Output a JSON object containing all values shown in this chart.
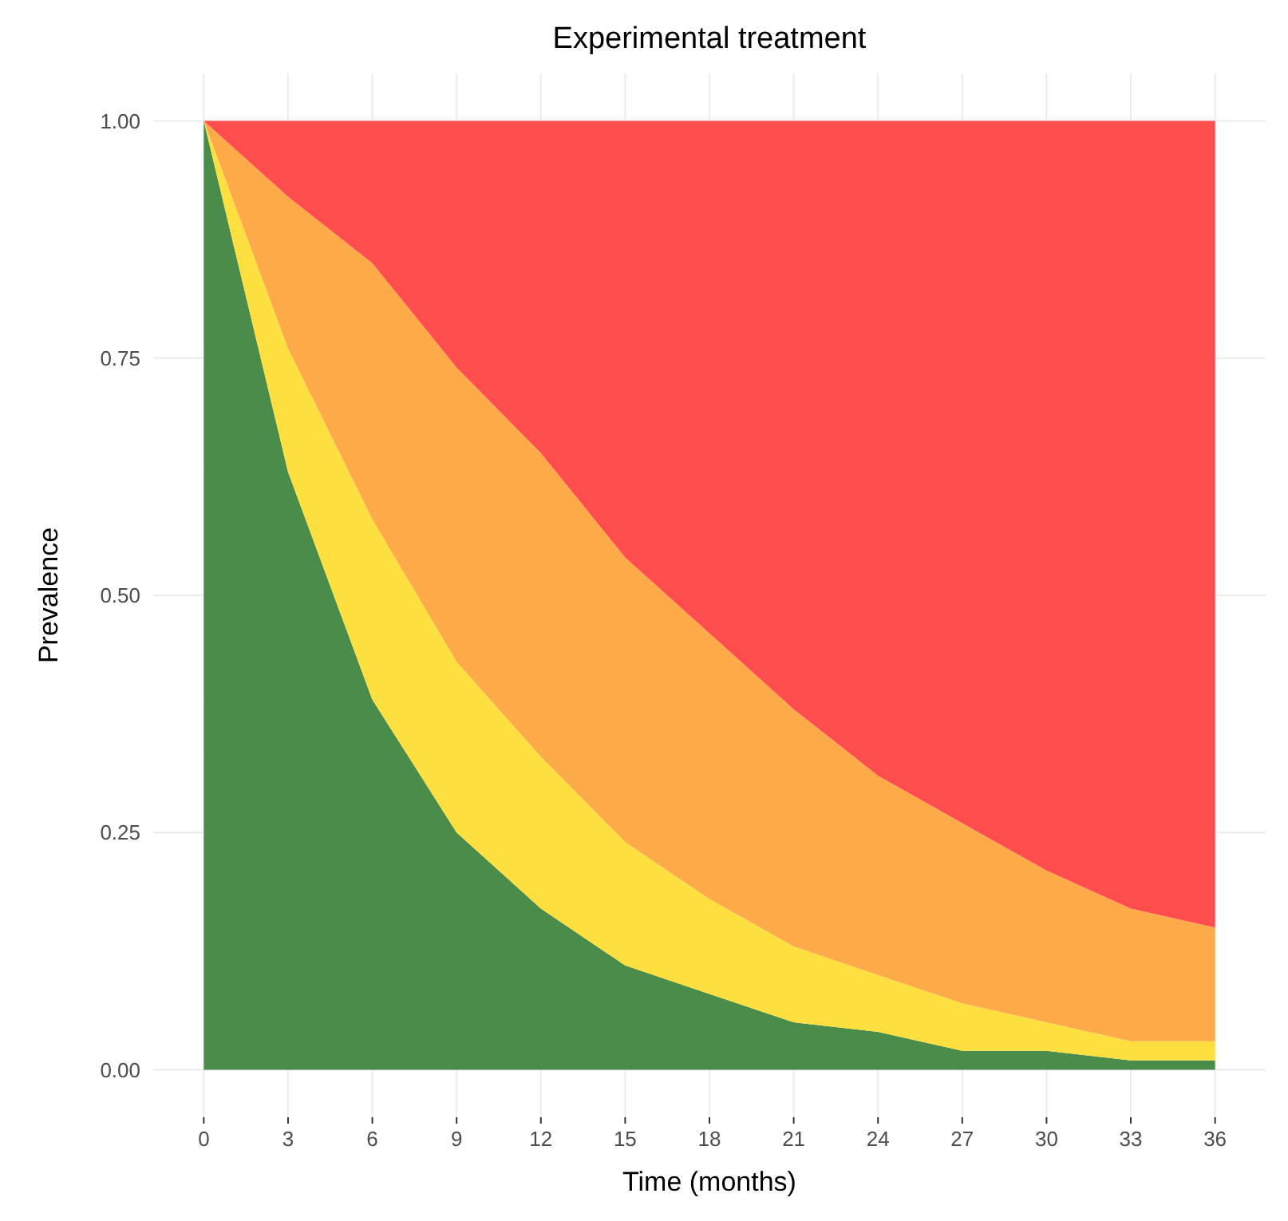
{
  "chart_data": {
    "type": "area",
    "title": "Experimental treatment",
    "xlabel": "Time (months)",
    "ylabel": "Prevalence",
    "stacked": true,
    "x": [
      0,
      3,
      6,
      9,
      12,
      15,
      18,
      21,
      24,
      27,
      30,
      33,
      36
    ],
    "series": [
      {
        "color": "#4a8c4a",
        "values": [
          1,
          0.63,
          0.39,
          0.25,
          0.17,
          0.11,
          0.08,
          0.05,
          0.04,
          0.02,
          0.02,
          0.01,
          0.01
        ]
      },
      {
        "color": "#fde040",
        "values": [
          0,
          0.13,
          0.19,
          0.18,
          0.16,
          0.13,
          0.1,
          0.08,
          0.06,
          0.05,
          0.03,
          0.02,
          0.02
        ]
      },
      {
        "color": "#fdaa48",
        "values": [
          0,
          0.16,
          0.27,
          0.31,
          0.32,
          0.3,
          0.28,
          0.25,
          0.21,
          0.19,
          0.16,
          0.14,
          0.12
        ]
      },
      {
        "color": "#ff4d4d",
        "values": [
          0,
          0.08,
          0.15,
          0.26,
          0.35,
          0.46,
          0.54,
          0.62,
          0.69,
          0.74,
          0.79,
          0.83,
          0.85
        ]
      }
    ],
    "xlim": [
      -1.8,
      37.8
    ],
    "xticks": [
      0,
      3,
      6,
      9,
      12,
      15,
      18,
      21,
      24,
      27,
      30,
      33,
      36
    ],
    "ylim": [
      -0.05,
      1.05
    ],
    "yticks": [
      {
        "value": 0,
        "label": "0.00"
      },
      {
        "value": 0.25,
        "label": "0.25"
      },
      {
        "value": 0.5,
        "label": "0.50"
      },
      {
        "value": 0.75,
        "label": "0.75"
      },
      {
        "value": 1,
        "label": "1.00"
      }
    ],
    "grid": true
  }
}
